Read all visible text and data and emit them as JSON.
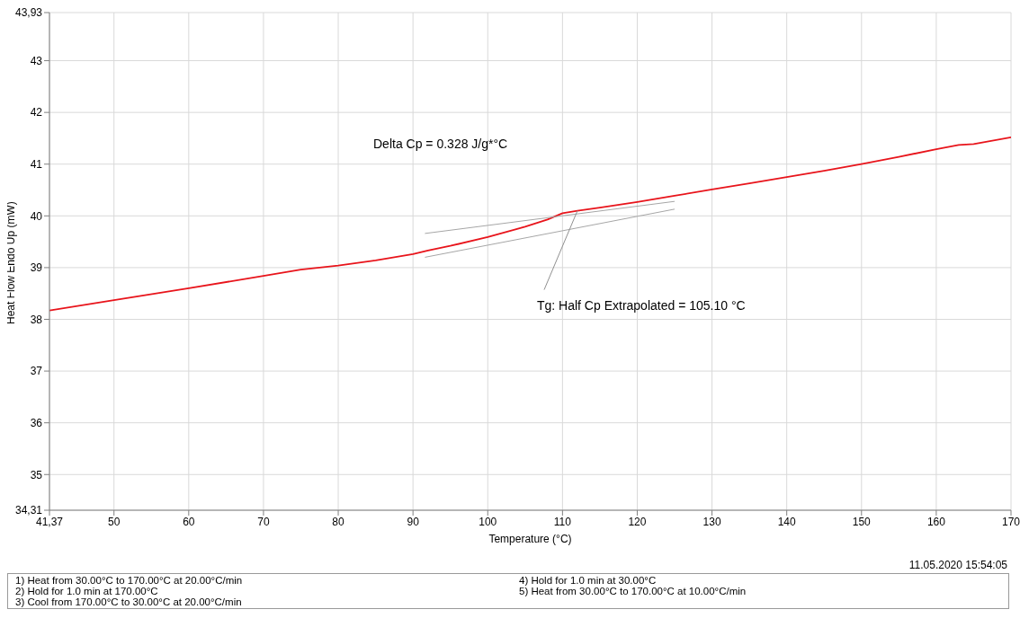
{
  "chart_data": {
    "type": "line",
    "xlabel": "Temperature (°C)",
    "ylabel": "Heat Flow Endo Up (mW)",
    "xlim": [
      41.37,
      170
    ],
    "xticks": [
      {
        "value": 41.37,
        "label": "41,37"
      },
      50,
      60,
      70,
      80,
      90,
      100,
      110,
      120,
      130,
      140,
      150,
      160,
      170
    ],
    "ylim": [
      34.31,
      43.93
    ],
    "yticks": [
      {
        "value": 34.31,
        "label": "34,31"
      },
      35,
      36,
      37,
      38,
      39,
      40,
      41,
      42,
      43,
      {
        "value": 43.93,
        "label": "43,93"
      }
    ],
    "grid": true,
    "marker": "none",
    "line_style": "solid",
    "series": [
      {
        "color": "#e8141b",
        "x": [
          41.37,
          50,
          60,
          70,
          75,
          80,
          85,
          90,
          92,
          95,
          100,
          105,
          108,
          110,
          112,
          115,
          120,
          125,
          130,
          135,
          140,
          145,
          150,
          155,
          160,
          163,
          165,
          170
        ],
        "values": [
          38.17,
          38.37,
          38.6,
          38.84,
          38.96,
          39.04,
          39.14,
          39.26,
          39.33,
          39.42,
          39.59,
          39.79,
          39.93,
          40.05,
          40.1,
          40.16,
          40.27,
          40.39,
          40.51,
          40.63,
          40.75,
          40.87,
          41.0,
          41.14,
          41.29,
          41.37,
          41.39,
          41.52
        ]
      },
      {
        "type": "line",
        "color": "#a6a6a6",
        "x": [
          91.6,
          125
        ],
        "values": [
          39.66,
          40.28
        ]
      },
      {
        "type": "line",
        "color": "#a6a6a6",
        "x": [
          91.6,
          125
        ],
        "values": [
          39.2,
          40.13
        ]
      }
    ],
    "annotations": [
      "Delta Cp = 0.328 J/g*°C",
      {
        "text": "Tg: Half Cp Extrapolated = 105.10 °C",
        "x": 112,
        "y": 40.1
      },
      "11.05.2020 15:54:05",
      "1)  Heat from 30.00°C to 170.00°C at 20.00°C/min",
      "2)  Hold for 1.0 min at 170.00°C",
      "3)  Cool from 170.00°C to 30.00°C at 20.00°C/min",
      "4)  Hold for 1.0 min at 30.00°C",
      "5)  Heat from 30.00°C to 170.00°C at 10.00°C/min"
    ]
  }
}
